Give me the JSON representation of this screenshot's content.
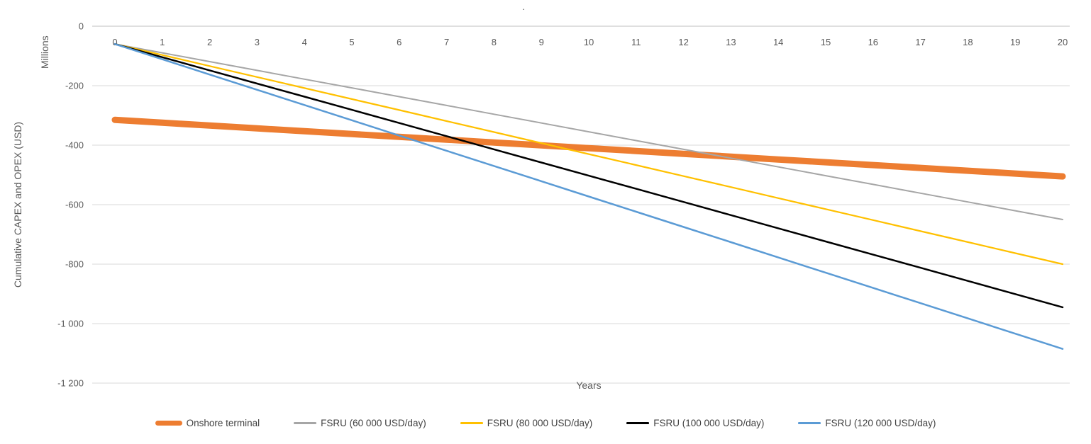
{
  "chart_data": {
    "type": "line",
    "title": ".",
    "xlabel": "Years",
    "ylabel": "Cumulative CAPEX and OPEX (USD)",
    "y_units_label": "Millions",
    "x": [
      0,
      1,
      2,
      3,
      4,
      5,
      6,
      7,
      8,
      9,
      10,
      11,
      12,
      13,
      14,
      15,
      16,
      17,
      18,
      19,
      20
    ],
    "x_tick_labels": [
      "0",
      "1",
      "2",
      "3",
      "4",
      "5",
      "6",
      "7",
      "8",
      "9",
      "10",
      "11",
      "12",
      "13",
      "14",
      "15",
      "16",
      "17",
      "18",
      "19",
      "20"
    ],
    "xlim": [
      0,
      20
    ],
    "ylim": [
      -1200,
      0
    ],
    "y_ticks": [
      0,
      -200,
      -400,
      -600,
      -800,
      -1000,
      -1200
    ],
    "y_tick_labels": [
      "0",
      "-200",
      "-400",
      "-600",
      "-800",
      "-1 000",
      "-1 200"
    ],
    "grid": true,
    "legend_position": "bottom",
    "colors": {
      "gridline": "#D9D9D9",
      "axis_line": "#BFBFBF",
      "tick_label": "#595959",
      "legend_text": "#404040",
      "background": "#FFFFFF"
    },
    "series": [
      {
        "name": "Onshore terminal",
        "color": "#ED7D31",
        "line_width": 9,
        "values": [
          -315,
          -324.5,
          -334,
          -343.5,
          -353,
          -362.5,
          -372,
          -381.5,
          -391,
          -400.5,
          -410,
          -419.5,
          -429,
          -438.5,
          -448,
          -457.5,
          -467,
          -476.5,
          -486,
          -495.5,
          -505
        ]
      },
      {
        "name": "FSRU (60 000 USD/day)",
        "color": "#A6A6A6",
        "line_width": 2,
        "values": [
          -60,
          -89.5,
          -119,
          -148.5,
          -178,
          -207.5,
          -237,
          -266.5,
          -296,
          -325.5,
          -355,
          -384.5,
          -414,
          -443.5,
          -473,
          -502.5,
          -532,
          -561.5,
          -591,
          -620.5,
          -650
        ]
      },
      {
        "name": "FSRU (80 000 USD/day)",
        "color": "#FFC000",
        "line_width": 2.25,
        "values": [
          -60,
          -97,
          -134,
          -171,
          -208,
          -245,
          -282,
          -319,
          -356,
          -393,
          -430,
          -467,
          -504,
          -541,
          -578,
          -615,
          -652,
          -689,
          -726,
          -763,
          -800
        ]
      },
      {
        "name": "FSRU (100 000 USD/day)",
        "color": "#000000",
        "line_width": 2.5,
        "values": [
          -60,
          -104.25,
          -148.5,
          -192.75,
          -237,
          -281.25,
          -325.5,
          -369.75,
          -414,
          -458.25,
          -502.5,
          -546.75,
          -591,
          -635.25,
          -679.5,
          -723.75,
          -768,
          -812.25,
          -856.5,
          -900.75,
          -945
        ]
      },
      {
        "name": "FSRU (120 000 USD/day)",
        "color": "#5B9BD5",
        "line_width": 2.5,
        "values": [
          -60,
          -111.25,
          -162.5,
          -213.75,
          -265,
          -316.25,
          -367.5,
          -418.75,
          -470,
          -521.25,
          -572.5,
          -623.75,
          -675,
          -726.25,
          -777.5,
          -828.75,
          -880,
          -931.25,
          -982.5,
          -1033.75,
          -1085
        ]
      }
    ]
  }
}
